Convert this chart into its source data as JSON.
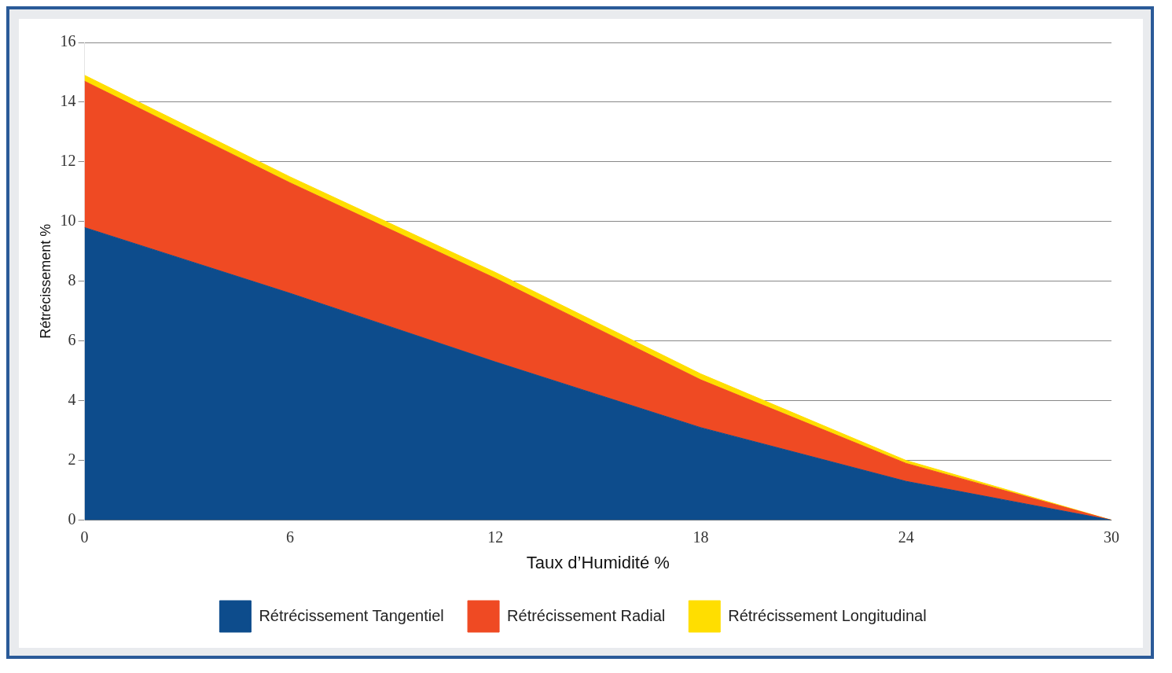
{
  "chart_data": {
    "type": "area",
    "stacked": true,
    "xlabel": "Taux d’Humidité %",
    "ylabel": "Rétrécissement %",
    "x": [
      0,
      6,
      12,
      18,
      24,
      30
    ],
    "series": [
      {
        "name": "Rétrécissement Tangentiel",
        "color": "#0d4c8c",
        "values": [
          9.8,
          7.6,
          5.3,
          3.1,
          1.3,
          0
        ]
      },
      {
        "name": "Rétrécissement Radial",
        "color": "#ef4a23",
        "values": [
          4.9,
          3.7,
          2.8,
          1.6,
          0.6,
          0
        ]
      },
      {
        "name": "Rétrécissement Longitudinal",
        "color": "#ffde00",
        "values": [
          0.2,
          0.2,
          0.2,
          0.2,
          0.1,
          0
        ]
      }
    ],
    "xlim": [
      0,
      30
    ],
    "xticks": [
      0,
      6,
      12,
      18,
      24,
      30
    ],
    "ylim": [
      0,
      16
    ],
    "yticks": [
      0,
      2,
      4,
      6,
      8,
      10,
      12,
      14,
      16
    ],
    "grid": "y",
    "legend": "bottom"
  }
}
